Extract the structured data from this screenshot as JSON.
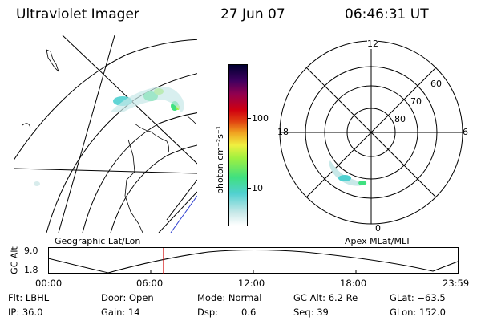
{
  "header": {
    "instrument": "Ultraviolet Imager",
    "date": "27 Jun 07",
    "time": "06:46:31 UT"
  },
  "left_panel": {
    "label": "Geographic Lat/Lon"
  },
  "right_panel": {
    "label": "Apex MLat/MLT",
    "mlt_labels": {
      "top": "12",
      "left": "18",
      "right": "6",
      "bottom": "0"
    },
    "lat_labels": [
      "60",
      "70",
      "80"
    ]
  },
  "colorbar": {
    "unit_label": "photon cm⁻²s⁻¹",
    "ticks": [
      "100",
      "10"
    ],
    "scale": "log",
    "colors": [
      "#ffffff",
      "#c8e8e8",
      "#50d0d0",
      "#40e080",
      "#a0f040",
      "#f0f040",
      "#f0a020",
      "#e04010",
      "#d00010",
      "#900050",
      "#400060",
      "#000030"
    ]
  },
  "orbit_plot": {
    "ylabel": "GC Alt",
    "y_ticks": [
      "9.0",
      "1.8"
    ],
    "x_ticks": [
      "00:00",
      "06:00",
      "12:00",
      "18:00",
      "23:59"
    ],
    "marker_color": "#d00000",
    "line_color": "#000000"
  },
  "info": {
    "flt": "Flt: LBHL",
    "ip": "IP: 36.0",
    "door": "Door: Open",
    "gain": "Gain: 14",
    "mode": "Mode: Normal",
    "dsp_label": "Dsp:",
    "dsp_value": "0.6",
    "gc_alt": "GC Alt: 6.2 Re",
    "seq": "Seq: 39",
    "glat": "GLat: −63.5",
    "glon": "GLon: 152.0"
  }
}
